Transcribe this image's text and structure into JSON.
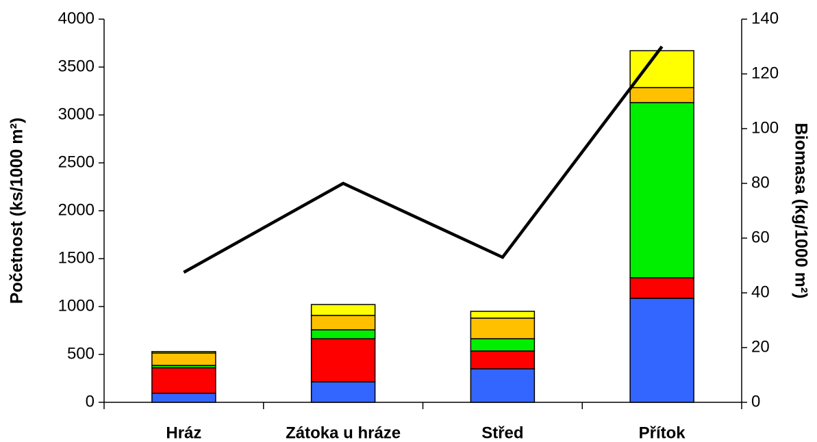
{
  "chart_data": {
    "type": "bar",
    "categories": [
      "Hráz",
      "Zátoka u hráze",
      "Střed",
      "Přítok"
    ],
    "stacked": true,
    "series": [
      {
        "color": "#3366ff",
        "values": [
          95,
          214,
          350,
          1086
        ]
      },
      {
        "color": "#ff0000",
        "values": [
          265,
          450,
          186,
          214
        ]
      },
      {
        "color": "#00ee00",
        "values": [
          25,
          93,
          128,
          1829
        ]
      },
      {
        "color": "#ffc000",
        "values": [
          130,
          150,
          215,
          157
        ]
      },
      {
        "color": "#ffff00",
        "values": [
          15,
          114,
          71,
          385
        ]
      },
      {
        "type": "line",
        "axis": "y2",
        "color": "#000000",
        "values": [
          47.5,
          80,
          53,
          130
        ]
      }
    ],
    "ylabel": "Početnost (ks/1000 m²)",
    "y2label": "Biomasa (kg/1000 m²)",
    "ylim": [
      0,
      4000
    ],
    "yticks": [
      0,
      500,
      1000,
      1500,
      2000,
      2500,
      3000,
      3500,
      4000
    ],
    "y2lim": [
      0,
      140
    ],
    "y2ticks": [
      0,
      20,
      40,
      60,
      80,
      100,
      120,
      140
    ]
  }
}
